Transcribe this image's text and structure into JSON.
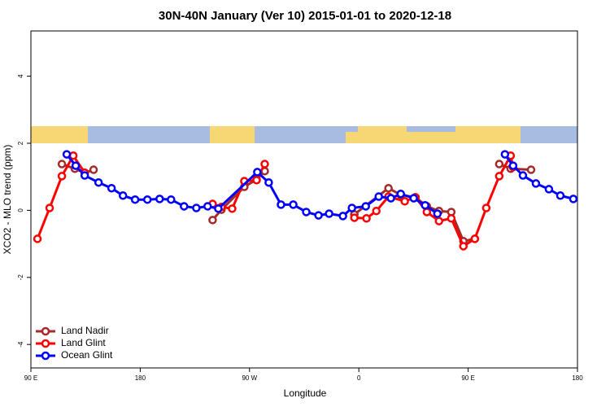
{
  "chart_data": {
    "type": "line",
    "title": "30N-40N January (Ver 10)   2015-01-01 to 2020-12-18",
    "x_label": "Longitude",
    "y_label": "XCO2 - MLO trend (ppm)",
    "xlim": [
      90,
      540
    ],
    "ylim": [
      -4.7,
      5.35
    ],
    "xticks": [
      {
        "value": 90,
        "label": "90 E"
      },
      180,
      {
        "value": 270,
        "label": "90 W"
      },
      {
        "value": 360,
        "label": "0"
      },
      {
        "value": 450,
        "label": "90 E"
      },
      {
        "value": 540,
        "label": "180"
      }
    ],
    "yticks": [
      -4,
      -2,
      0,
      2,
      4
    ],
    "legend": "bottom-left",
    "series": [
      {
        "name": "Land Nadir",
        "color": "#a52a2a",
        "x": [
          115.5,
          126.2,
          134.3,
          141.6,
          null,
          239.6,
          246.9,
          265.7,
          275.8,
          282.5,
          null,
          356.3,
          384.4,
          394.5,
          406.6,
          416.0,
          426.0,
          436.1,
          446.1,
          455.5,
          null,
          475.6,
          485.0,
          501.8
        ],
        "values": [
          1.38,
          1.24,
          1.12,
          1.21,
          null,
          -0.29,
          0.02,
          0.7,
          0.92,
          1.17,
          null,
          -0.12,
          0.66,
          0.46,
          0.39,
          0.12,
          -0.02,
          -0.05,
          -0.92,
          -0.85,
          null,
          1.38,
          1.24,
          1.21
        ]
      },
      {
        "name": "Land Glint",
        "color": "#ff0000",
        "x": [
          95.4,
          105.4,
          115.5,
          124.9,
          134.3,
          null,
          239.6,
          246.9,
          255.7,
          265.7,
          275.8,
          282.5,
          null,
          356.3,
          366.3,
          374.4,
          384.4,
          397.8,
          406.6,
          416.0,
          426.0,
          436.1,
          446.1,
          455.5,
          464.9,
          475.6,
          485.0,
          487.0
        ],
        "values": [
          -0.85,
          0.07,
          1.02,
          1.63,
          1.12,
          null,
          0.19,
          0.1,
          0.05,
          0.87,
          0.9,
          1.38,
          null,
          -0.22,
          -0.24,
          -0.02,
          0.41,
          0.27,
          0.39,
          -0.05,
          -0.32,
          -0.24,
          -1.07,
          -0.85,
          0.07,
          1.02,
          1.63,
          1.29
        ]
      },
      {
        "name": "Ocean Glint",
        "color": "#0000ff",
        "x": [
          119.5,
          126.9,
          134.3,
          145.7,
          156.4,
          165.8,
          175.8,
          185.9,
          196.0,
          205.4,
          216.1,
          226.2,
          235.5,
          244.3,
          276.4,
          285.8,
          295.9,
          306.0,
          316.7,
          326.8,
          335.5,
          346.9,
          354.3,
          365.7,
          376.4,
          386.4,
          394.5,
          405.2,
          414.6,
          424.7,
          null,
          480.3,
          487.0,
          495.1,
          505.8,
          516.5,
          525.9,
          536.6
        ],
        "values": [
          1.67,
          1.33,
          1.04,
          0.83,
          0.66,
          0.44,
          0.32,
          0.32,
          0.34,
          0.32,
          0.12,
          0.07,
          0.12,
          0.05,
          1.14,
          0.83,
          0.17,
          0.17,
          -0.05,
          -0.15,
          -0.1,
          -0.17,
          0.07,
          0.12,
          0.41,
          0.36,
          0.49,
          0.36,
          0.15,
          -0.1,
          null,
          1.67,
          1.33,
          1.04,
          0.8,
          0.63,
          0.44,
          0.34
        ]
      }
    ]
  }
}
